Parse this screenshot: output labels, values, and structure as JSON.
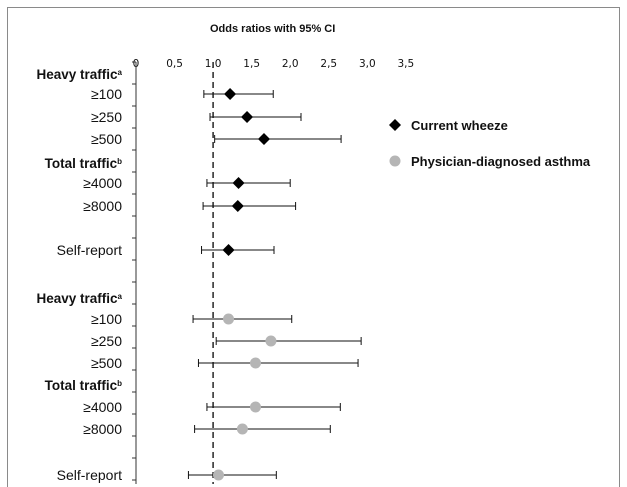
{
  "chart_data": {
    "type": "forest",
    "title": "Odds ratios with 95% CI",
    "x_ticks": [
      "0",
      "0,5",
      "1,0",
      "1,5",
      "2,0",
      "2,5",
      "3,0",
      "3,5"
    ],
    "xlim": [
      0,
      3.5
    ],
    "reference_line": 1.0,
    "legend_position": "right",
    "series": [
      {
        "name": "Current wheeze",
        "marker": "diamond",
        "color": "#000000"
      },
      {
        "name": "Physician-diagnosed asthma",
        "marker": "circle",
        "color": "#b5b5b5"
      }
    ],
    "rows": [
      {
        "label": "Heavy traffic",
        "sup": "a",
        "header": true
      },
      {
        "label": "≥100",
        "series": 0,
        "or": 1.22,
        "lo": 0.88,
        "hi": 1.78
      },
      {
        "label": "≥250",
        "series": 0,
        "or": 1.44,
        "lo": 0.96,
        "hi": 2.14
      },
      {
        "label": "≥500",
        "series": 0,
        "or": 1.66,
        "lo": 1.02,
        "hi": 2.66
      },
      {
        "label": "Total traffic",
        "sup": "b",
        "header": true
      },
      {
        "label": "≥4000",
        "series": 0,
        "or": 1.33,
        "lo": 0.92,
        "hi": 2.0
      },
      {
        "label": "≥8000",
        "series": 0,
        "or": 1.32,
        "lo": 0.87,
        "hi": 2.07
      },
      {
        "label": "Self-report",
        "series": 0,
        "or": 1.2,
        "lo": 0.85,
        "hi": 1.79
      },
      {
        "label": "Heavy traffic",
        "sup": "a",
        "header": true
      },
      {
        "label": "≥100",
        "series": 1,
        "or": 1.2,
        "lo": 0.74,
        "hi": 2.02
      },
      {
        "label": "≥250",
        "series": 1,
        "or": 1.75,
        "lo": 1.04,
        "hi": 2.92
      },
      {
        "label": "≥500",
        "series": 1,
        "or": 1.55,
        "lo": 0.81,
        "hi": 2.88
      },
      {
        "label": "Total traffic",
        "sup": "b",
        "header": true
      },
      {
        "label": "≥4000",
        "series": 1,
        "or": 1.55,
        "lo": 0.92,
        "hi": 2.65
      },
      {
        "label": "≥8000",
        "series": 1,
        "or": 1.38,
        "lo": 0.76,
        "hi": 2.52
      },
      {
        "label": "Self-report",
        "series": 1,
        "or": 1.07,
        "lo": 0.68,
        "hi": 1.82
      }
    ]
  }
}
